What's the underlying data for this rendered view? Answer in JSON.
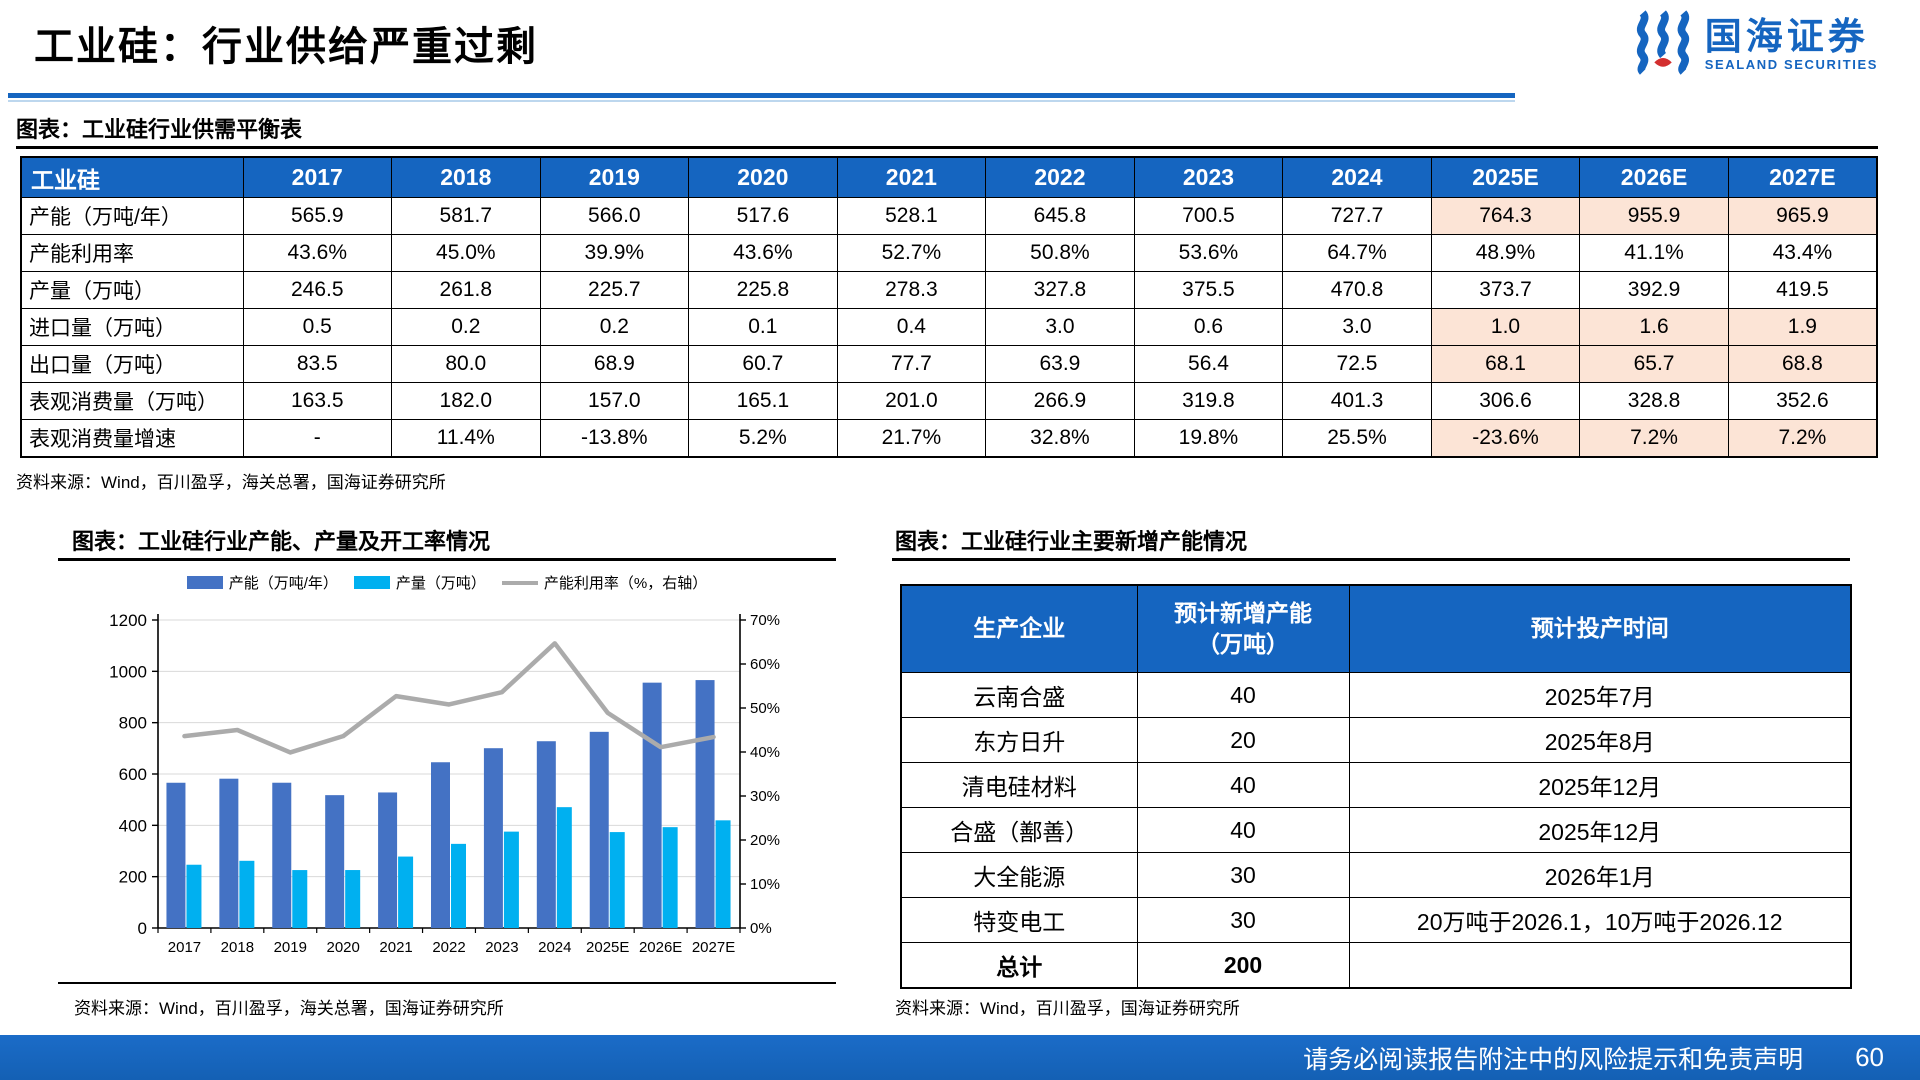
{
  "page": {
    "title": "工业硅：行业供给严重过剩",
    "footer": {
      "disclaimer": "请务必阅读报告附注中的风险提示和免责声明",
      "page_number": "60"
    }
  },
  "logo": {
    "name_cn": "国海证券",
    "name_en": "SEALAND SECURITIES"
  },
  "colors": {
    "accent_blue": "#1565C0",
    "forecast_highlight": "#FCE4D6",
    "bar_capacity": "#4472C4",
    "bar_output": "#00B0F0",
    "line_utilization": "#ABABAB",
    "logo_red": "#D32F2F"
  },
  "balance_table": {
    "caption": "图表：工业硅行业供需平衡表",
    "header": [
      "工业硅",
      "2017",
      "2018",
      "2019",
      "2020",
      "2021",
      "2022",
      "2023",
      "2024",
      "2025E",
      "2026E",
      "2027E"
    ],
    "forecast_col_start": 8,
    "rows": [
      {
        "label": "产能（万吨/年）",
        "highlight_forecast": true,
        "values": [
          "565.9",
          "581.7",
          "566.0",
          "517.6",
          "528.1",
          "645.8",
          "700.5",
          "727.7",
          "764.3",
          "955.9",
          "965.9"
        ]
      },
      {
        "label": "产能利用率",
        "highlight_forecast": false,
        "values": [
          "43.6%",
          "45.0%",
          "39.9%",
          "43.6%",
          "52.7%",
          "50.8%",
          "53.6%",
          "64.7%",
          "48.9%",
          "41.1%",
          "43.4%"
        ]
      },
      {
        "label": "产量（万吨）",
        "highlight_forecast": false,
        "values": [
          "246.5",
          "261.8",
          "225.7",
          "225.8",
          "278.3",
          "327.8",
          "375.5",
          "470.8",
          "373.7",
          "392.9",
          "419.5"
        ]
      },
      {
        "label": "进口量（万吨）",
        "highlight_forecast": true,
        "values": [
          "0.5",
          "0.2",
          "0.2",
          "0.1",
          "0.4",
          "3.0",
          "0.6",
          "3.0",
          "1.0",
          "1.6",
          "1.9"
        ]
      },
      {
        "label": "出口量（万吨）",
        "highlight_forecast": true,
        "values": [
          "83.5",
          "80.0",
          "68.9",
          "60.7",
          "77.7",
          "63.9",
          "56.4",
          "72.5",
          "68.1",
          "65.7",
          "68.8"
        ]
      },
      {
        "label": "表观消费量（万吨）",
        "highlight_forecast": false,
        "values": [
          "163.5",
          "182.0",
          "157.0",
          "165.1",
          "201.0",
          "266.9",
          "319.8",
          "401.3",
          "306.6",
          "328.8",
          "352.6"
        ]
      },
      {
        "label": "表观消费量增速",
        "highlight_forecast": true,
        "values": [
          "-",
          "11.4%",
          "-13.8%",
          "5.2%",
          "21.7%",
          "32.8%",
          "19.8%",
          "25.5%",
          "-23.6%",
          "7.2%",
          "7.2%"
        ]
      }
    ],
    "source": "资料来源：Wind，百川盈孚，海关总署，国海证券研究所"
  },
  "capacity_chart": {
    "caption": "图表：工业硅行业产能、产量及开工率情况",
    "source": "资料来源：Wind，百川盈孚，海关总署，国海证券研究所"
  },
  "chart_data": {
    "type": "bar",
    "title": "工业硅行业产能、产量及开工率情况",
    "categories": [
      "2017",
      "2018",
      "2019",
      "2020",
      "2021",
      "2022",
      "2023",
      "2024",
      "2025E",
      "2026E",
      "2027E"
    ],
    "series": [
      {
        "name": "产能（万吨/年）",
        "kind": "bar",
        "axis": "left",
        "color": "#4472C4",
        "values": [
          565.9,
          581.7,
          566.0,
          517.6,
          528.1,
          645.8,
          700.5,
          727.7,
          764.3,
          955.9,
          965.9
        ]
      },
      {
        "name": "产量（万吨）",
        "kind": "bar",
        "axis": "left",
        "color": "#00B0F0",
        "values": [
          246.5,
          261.8,
          225.7,
          225.8,
          278.3,
          327.8,
          375.5,
          470.8,
          373.7,
          392.9,
          419.5
        ]
      },
      {
        "name": "产能利用率（%，右轴）",
        "kind": "line",
        "axis": "right",
        "color": "#ABABAB",
        "values": [
          43.6,
          45.0,
          39.9,
          43.6,
          52.7,
          50.8,
          53.6,
          64.7,
          48.9,
          41.1,
          43.4
        ]
      }
    ],
    "left_axis": {
      "min": 0,
      "max": 1200,
      "step": 200
    },
    "right_axis": {
      "min": 0,
      "max": 70,
      "step": 10,
      "suffix": "%"
    },
    "grid": true,
    "legend_position": "top"
  },
  "capacity_table": {
    "caption": "图表：工业硅行业主要新增产能情况",
    "header": [
      "生产企业",
      "预计新增产能\n（万吨）",
      "预计投产时间"
    ],
    "rows": [
      {
        "company": "云南合盛",
        "capacity": "40",
        "time": "2025年7月",
        "total": false
      },
      {
        "company": "东方日升",
        "capacity": "20",
        "time": "2025年8月",
        "total": false
      },
      {
        "company": "清电硅材料",
        "capacity": "40",
        "time": "2025年12月",
        "total": false
      },
      {
        "company": "合盛（鄯善）",
        "capacity": "40",
        "time": "2025年12月",
        "total": false
      },
      {
        "company": "大全能源",
        "capacity": "30",
        "time": "2026年1月",
        "total": false
      },
      {
        "company": "特变电工",
        "capacity": "30",
        "time": "20万吨于2026.1，10万吨于2026.12",
        "total": false
      },
      {
        "company": "总计",
        "capacity": "200",
        "time": "",
        "total": true
      }
    ],
    "source": "资料来源：Wind，百川盈孚，国海证券研究所"
  }
}
